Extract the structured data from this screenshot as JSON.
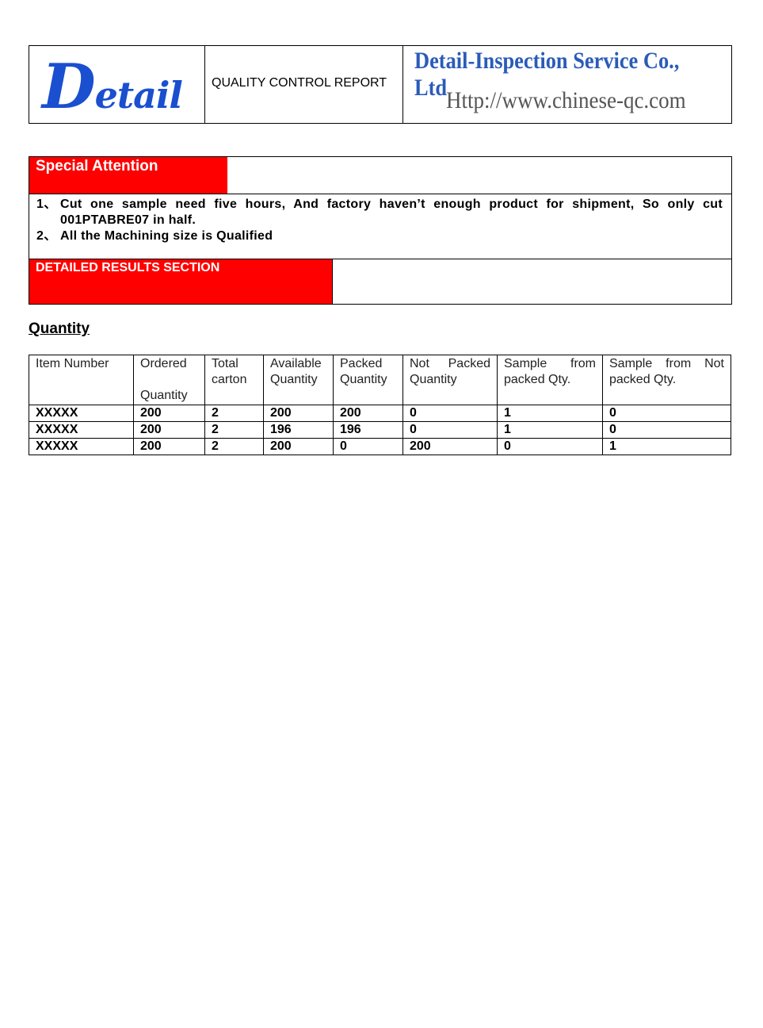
{
  "header": {
    "logo_text": "Detail",
    "report_title": "QUALITY CONTROL REPORT",
    "company_name": "Detail-Inspection Service Co., Ltd",
    "company_url": "Http://www.chinese-qc.com"
  },
  "special_attention": {
    "label": "Special Attention",
    "notes": [
      {
        "num": "1、",
        "text": "Cut one sample need five hours, And factory haven’t enough product for shipment, So only cut 001PTABRE07 in half."
      },
      {
        "num": "2、",
        "text": "All the Machining size is Qualified"
      }
    ]
  },
  "detailed_results": {
    "label": "DETAILED RESULTS SECTION"
  },
  "quantity": {
    "heading": "Quantity",
    "columns": [
      "Item Number",
      "Ordered\n\nQuantity",
      "Total carton",
      "Available Quantity",
      "Packed Quantity",
      "Not Packed Quantity",
      "Sample from packed Qty.",
      "Sample from Not packed Qty."
    ],
    "rows": [
      [
        "XXXXX",
        "200",
        "2",
        "200",
        "200",
        "0",
        "1",
        "0"
      ],
      [
        "XXXXX",
        "200",
        "2",
        "196",
        "196",
        "0",
        "1",
        "0"
      ],
      [
        "XXXXX",
        "200",
        "2",
        "200",
        "0",
        "200",
        "0",
        "1"
      ]
    ]
  },
  "colors": {
    "accent_red": "#ff0000",
    "logo_blue": "#1a4fd0",
    "company_blue": "#2a5bb8"
  }
}
